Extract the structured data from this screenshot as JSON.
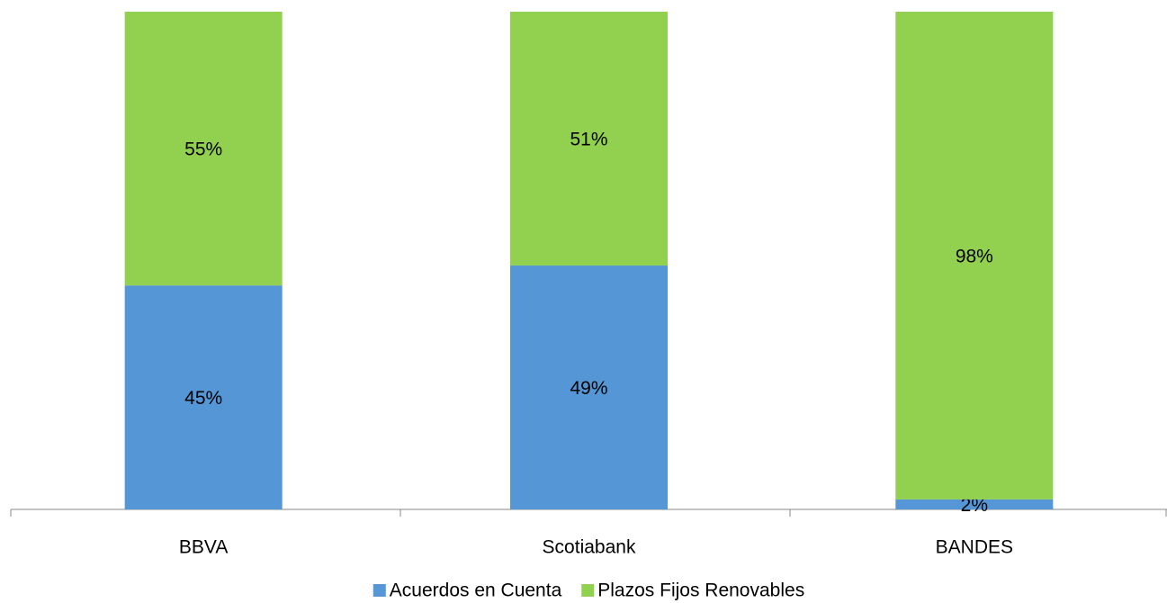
{
  "chart_data": {
    "type": "stacked_bar",
    "categories": [
      "BBVA",
      "Scotiabank",
      "BANDES"
    ],
    "series": [
      {
        "name": "Acuerdos en Cuenta",
        "color": "#5596d6",
        "values": [
          45,
          49,
          2
        ],
        "value_labels": [
          "45%",
          "49%",
          "2%"
        ]
      },
      {
        "name": "Plazos Fijos Renovables",
        "color": "#92d050",
        "values": [
          55,
          51,
          98
        ],
        "value_labels": [
          "55%",
          "51%",
          "98%"
        ]
      }
    ],
    "ylim": [
      0,
      100
    ],
    "legend": "bottom"
  }
}
